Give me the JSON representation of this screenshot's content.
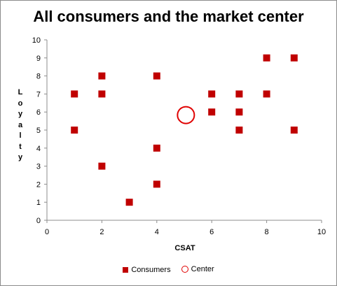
{
  "chart_data": {
    "type": "scatter",
    "title": "All consumers and the market center",
    "xlabel": "CSAT",
    "ylabel": "Loyalty",
    "xlim": [
      0,
      10
    ],
    "ylim": [
      0,
      10
    ],
    "x_ticks": [
      "0",
      "2",
      "4",
      "6",
      "8",
      "10"
    ],
    "y_ticks": [
      "0",
      "1",
      "2",
      "3",
      "4",
      "5",
      "6",
      "7",
      "8",
      "9",
      "10"
    ],
    "grid": false,
    "legend_position": "bottom",
    "series": [
      {
        "name": "Consumers",
        "marker": "square",
        "color": "#c00000",
        "points": [
          {
            "x": 1,
            "y": 7
          },
          {
            "x": 1,
            "y": 5
          },
          {
            "x": 2,
            "y": 8
          },
          {
            "x": 2,
            "y": 7
          },
          {
            "x": 2,
            "y": 3
          },
          {
            "x": 3,
            "y": 1
          },
          {
            "x": 4,
            "y": 8
          },
          {
            "x": 4,
            "y": 4
          },
          {
            "x": 4,
            "y": 2
          },
          {
            "x": 6,
            "y": 7
          },
          {
            "x": 6,
            "y": 6
          },
          {
            "x": 7,
            "y": 7
          },
          {
            "x": 7,
            "y": 6
          },
          {
            "x": 7,
            "y": 5
          },
          {
            "x": 8,
            "y": 9
          },
          {
            "x": 8,
            "y": 7
          },
          {
            "x": 9,
            "y": 9
          },
          {
            "x": 9,
            "y": 5
          }
        ]
      },
      {
        "name": "Center",
        "marker": "circle-open",
        "color": "#e00000",
        "points": [
          {
            "x": 5.06,
            "y": 5.83
          }
        ]
      }
    ]
  }
}
